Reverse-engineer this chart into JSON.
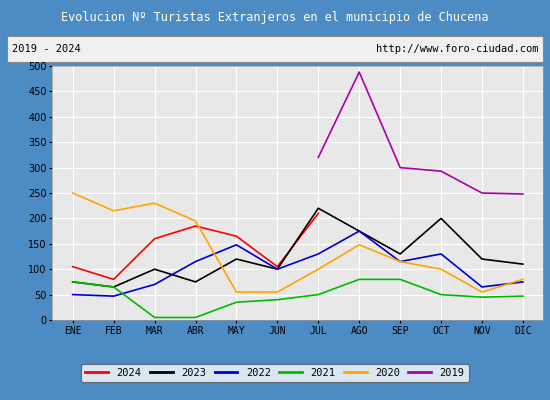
{
  "title": "Evolucion Nº Turistas Extranjeros en el municipio de Chucena",
  "subtitle_left": "2019 - 2024",
  "subtitle_right": "http://www.foro-ciudad.com",
  "title_bg_color": "#4c8bc4",
  "title_text_color": "#ffffff",
  "subtitle_bg_color": "#f0f0f0",
  "subtitle_text_color": "#000000",
  "plot_bg_color": "#e8e8e8",
  "grid_color": "#ffffff",
  "months": [
    "ENE",
    "FEB",
    "MAR",
    "ABR",
    "MAY",
    "JUN",
    "JUL",
    "AGO",
    "SEP",
    "OCT",
    "NOV",
    "DIC"
  ],
  "ylim": [
    0,
    500
  ],
  "yticks": [
    0,
    50,
    100,
    150,
    200,
    250,
    300,
    350,
    400,
    450,
    500
  ],
  "series": {
    "2024": {
      "color": "#ff0000",
      "values": [
        105,
        80,
        160,
        185,
        165,
        105,
        210,
        null,
        null,
        null,
        null,
        null
      ]
    },
    "2023": {
      "color": "#000000",
      "values": [
        75,
        65,
        100,
        75,
        120,
        100,
        220,
        175,
        130,
        200,
        120,
        110
      ]
    },
    "2022": {
      "color": "#0000cc",
      "values": [
        50,
        47,
        70,
        115,
        148,
        100,
        130,
        175,
        115,
        130,
        65,
        75
      ]
    },
    "2021": {
      "color": "#00bb00",
      "values": [
        75,
        65,
        5,
        5,
        35,
        40,
        50,
        80,
        80,
        50,
        45,
        47
      ]
    },
    "2020": {
      "color": "#ffa500",
      "values": [
        250,
        215,
        230,
        195,
        55,
        55,
        100,
        148,
        115,
        100,
        55,
        80
      ]
    },
    "2019": {
      "color": "#aa00aa",
      "values": [
        null,
        null,
        null,
        null,
        null,
        null,
        320,
        488,
        300,
        293,
        250,
        248
      ]
    }
  },
  "legend_order": [
    "2024",
    "2023",
    "2022",
    "2021",
    "2020",
    "2019"
  ],
  "outer_bg_color": "#4c8bc4",
  "border_width": 4
}
